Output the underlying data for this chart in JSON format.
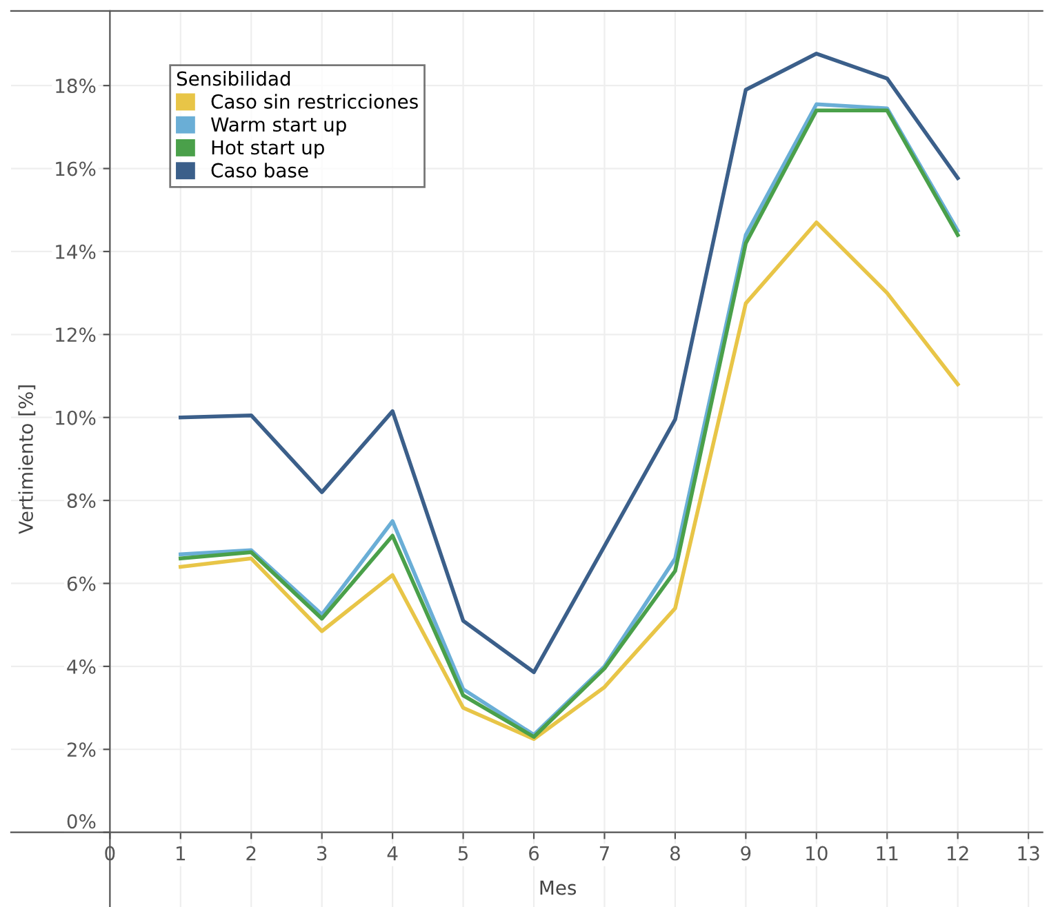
{
  "chart_data": {
    "type": "line",
    "xlabel": "Mes",
    "ylabel": "Vertimiento [%]",
    "legend_title": "Sensibilidad",
    "x": [
      1,
      2,
      3,
      4,
      5,
      6,
      7,
      8,
      9,
      10,
      11,
      12
    ],
    "series": [
      {
        "name": "Caso sin restricciones",
        "color": "#e8c547",
        "values": [
          6.4,
          6.6,
          4.85,
          6.2,
          3.0,
          2.25,
          3.5,
          5.4,
          12.75,
          14.7,
          13.0,
          10.8
        ]
      },
      {
        "name": "Warm start up",
        "color": "#6aaed6",
        "values": [
          6.7,
          6.8,
          5.25,
          7.5,
          3.45,
          2.35,
          4.0,
          6.6,
          14.4,
          17.55,
          17.45,
          14.5
        ]
      },
      {
        "name": "Hot start up",
        "color": "#4aa04a",
        "values": [
          6.6,
          6.75,
          5.15,
          7.15,
          3.3,
          2.3,
          3.95,
          6.3,
          14.2,
          17.4,
          17.4,
          14.4
        ]
      },
      {
        "name": "Caso base",
        "color": "#3b5f8a",
        "values": [
          10.0,
          10.05,
          8.2,
          10.15,
          5.1,
          3.86,
          6.9,
          9.95,
          17.9,
          18.77,
          18.17,
          15.77
        ]
      }
    ],
    "xlim": [
      -1.4,
      13.2
    ],
    "xticks": [
      0,
      1,
      2,
      3,
      4,
      5,
      6,
      7,
      8,
      9,
      10,
      11,
      12,
      13
    ],
    "ylim": [
      -1.8,
      19.8
    ],
    "yticks": [
      {
        "value": 0,
        "label": "0%"
      },
      {
        "value": 2,
        "label": "2%"
      },
      {
        "value": 4,
        "label": "4%"
      },
      {
        "value": 6,
        "label": "6%"
      },
      {
        "value": 8,
        "label": "8%"
      },
      {
        "value": 10,
        "label": "10%"
      },
      {
        "value": 12,
        "label": "12%"
      },
      {
        "value": 14,
        "label": "14%"
      },
      {
        "value": 16,
        "label": "16%"
      },
      {
        "value": 18,
        "label": "18%"
      }
    ],
    "grid": true,
    "legend": "top left",
    "marker": "none",
    "line_style": "solid"
  }
}
